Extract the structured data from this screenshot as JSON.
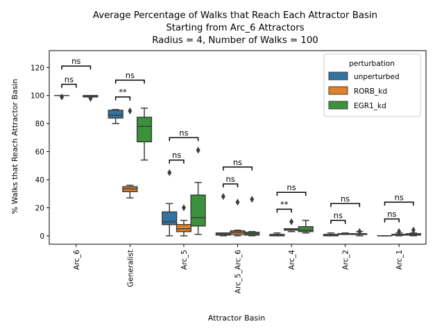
{
  "chart_data": {
    "type": "boxplot",
    "title_lines": [
      "Average Percentage of Walks that Reach Each Attractor Basin",
      "Starting from Arc_6 Attractors",
      "Radius = 4, Number of Walks = 100"
    ],
    "xlabel": "Attractor Basin",
    "ylabel": "% Walks that Reach Attractor Basin",
    "ylim": [
      -6,
      132
    ],
    "yticks": [
      0,
      20,
      40,
      60,
      80,
      100,
      120
    ],
    "categories": [
      "Arc_6",
      "Generalist",
      "Arc_5",
      "Arc_5_Arc_6",
      "Arc_4",
      "Arc_2",
      "Arc_1"
    ],
    "legend": {
      "title": "perturbation",
      "position": "top-right",
      "entries": [
        "unperturbed",
        "RORB_kd",
        "EGR1_kd"
      ]
    },
    "series": [
      {
        "name": "unperturbed",
        "color": "#3274a1",
        "boxes": [
          {
            "whislo": 100,
            "q1": 100,
            "med": 100,
            "q3": 100,
            "whishi": 100,
            "fliers": [
              99
            ]
          },
          {
            "whislo": 80,
            "q1": 84,
            "med": 86,
            "q3": 89.5,
            "whishi": 90,
            "fliers": []
          },
          {
            "whislo": 0,
            "q1": 8,
            "med": 10,
            "q3": 17,
            "whishi": 23,
            "fliers": [
              45
            ]
          },
          {
            "whislo": 0,
            "q1": 0.5,
            "med": 1.5,
            "q3": 2,
            "whishi": 2,
            "fliers": [
              28
            ]
          },
          {
            "whislo": 0,
            "q1": 0,
            "med": 0.5,
            "q3": 1,
            "whishi": 2,
            "fliers": []
          },
          {
            "whislo": 0,
            "q1": 0,
            "med": 0.5,
            "q3": 1,
            "whishi": 2,
            "fliers": []
          },
          {
            "whislo": 0,
            "q1": 0,
            "med": 0,
            "q3": 0,
            "whishi": 0,
            "fliers": []
          }
        ]
      },
      {
        "name": "RORB_kd",
        "color": "#e1812c",
        "boxes": [
          {
            "whislo": null,
            "q1": null,
            "med": null,
            "q3": null,
            "whishi": null,
            "fliers": []
          },
          {
            "whislo": 27,
            "q1": 31.5,
            "med": 33.5,
            "q3": 35,
            "whishi": 36,
            "fliers": [
              89
            ]
          },
          {
            "whislo": 0,
            "q1": 3,
            "med": 5,
            "q3": 8,
            "whishi": 11,
            "fliers": [
              20
            ]
          },
          {
            "whislo": 0,
            "q1": 1,
            "med": 2.5,
            "q3": 3.5,
            "whishi": 4,
            "fliers": [
              24
            ]
          },
          {
            "whislo": 3,
            "q1": 4,
            "med": 4.5,
            "q3": 5,
            "whishi": 5,
            "fliers": [
              10
            ]
          },
          {
            "whislo": 1,
            "q1": 1,
            "med": 1.5,
            "q3": 1.5,
            "whishi": 2,
            "fliers": []
          },
          {
            "whislo": 0,
            "q1": 0.5,
            "med": 1,
            "q3": 1,
            "whishi": 2,
            "fliers": [
              3
            ]
          }
        ]
      },
      {
        "name": "EGR1_kd",
        "color": "#3a923a",
        "boxes": [
          {
            "whislo": 99,
            "q1": 99,
            "med": 99.5,
            "q3": 100,
            "whishi": 100,
            "fliers": [
              98
            ]
          },
          {
            "whislo": 54,
            "q1": 67,
            "med": 78,
            "q3": 84.5,
            "whishi": 91,
            "fliers": []
          },
          {
            "whislo": 1,
            "q1": 7,
            "med": 13,
            "q3": 29,
            "whishi": 38,
            "fliers": [
              61
            ]
          },
          {
            "whislo": 0,
            "q1": 0.5,
            "med": 1.5,
            "q3": 2.5,
            "whishi": 3,
            "fliers": [
              26
            ]
          },
          {
            "whislo": 2,
            "q1": 3,
            "med": 4,
            "q3": 6.5,
            "whishi": 11,
            "fliers": []
          },
          {
            "whislo": 0,
            "q1": 1,
            "med": 1,
            "q3": 1.5,
            "whishi": 3,
            "fliers": [
              3
            ]
          },
          {
            "whislo": 0,
            "q1": 0.5,
            "med": 1,
            "q3": 1.5,
            "whishi": 2,
            "fliers": [
              4
            ]
          }
        ]
      }
    ],
    "significance": [
      {
        "category": "Arc_6",
        "from": "unperturbed",
        "to": "RORB_kd",
        "label": "ns",
        "y": 108
      },
      {
        "category": "Arc_6",
        "from": "unperturbed",
        "to": "EGR1_kd",
        "label": "ns",
        "y": 121
      },
      {
        "category": "Generalist",
        "from": "unperturbed",
        "to": "RORB_kd",
        "label": "**",
        "y": 99
      },
      {
        "category": "Generalist",
        "from": "unperturbed",
        "to": "EGR1_kd",
        "label": "ns",
        "y": 111
      },
      {
        "category": "Arc_5",
        "from": "unperturbed",
        "to": "RORB_kd",
        "label": "ns",
        "y": 54
      },
      {
        "category": "Arc_5",
        "from": "unperturbed",
        "to": "EGR1_kd",
        "label": "ns",
        "y": 70
      },
      {
        "category": "Arc_5_Arc_6",
        "from": "unperturbed",
        "to": "RORB_kd",
        "label": "ns",
        "y": 37
      },
      {
        "category": "Arc_5_Arc_6",
        "from": "unperturbed",
        "to": "EGR1_kd",
        "label": "ns",
        "y": 49
      },
      {
        "category": "Arc_4",
        "from": "unperturbed",
        "to": "RORB_kd",
        "label": "**",
        "y": 19
      },
      {
        "category": "Arc_4",
        "from": "unperturbed",
        "to": "EGR1_kd",
        "label": "ns",
        "y": 31
      },
      {
        "category": "Arc_2",
        "from": "unperturbed",
        "to": "RORB_kd",
        "label": "ns",
        "y": 11
      },
      {
        "category": "Arc_2",
        "from": "unperturbed",
        "to": "EGR1_kd",
        "label": "ns",
        "y": 23
      },
      {
        "category": "Arc_1",
        "from": "unperturbed",
        "to": "RORB_kd",
        "label": "ns",
        "y": 12
      },
      {
        "category": "Arc_1",
        "from": "unperturbed",
        "to": "EGR1_kd",
        "label": "ns",
        "y": 24
      }
    ]
  }
}
